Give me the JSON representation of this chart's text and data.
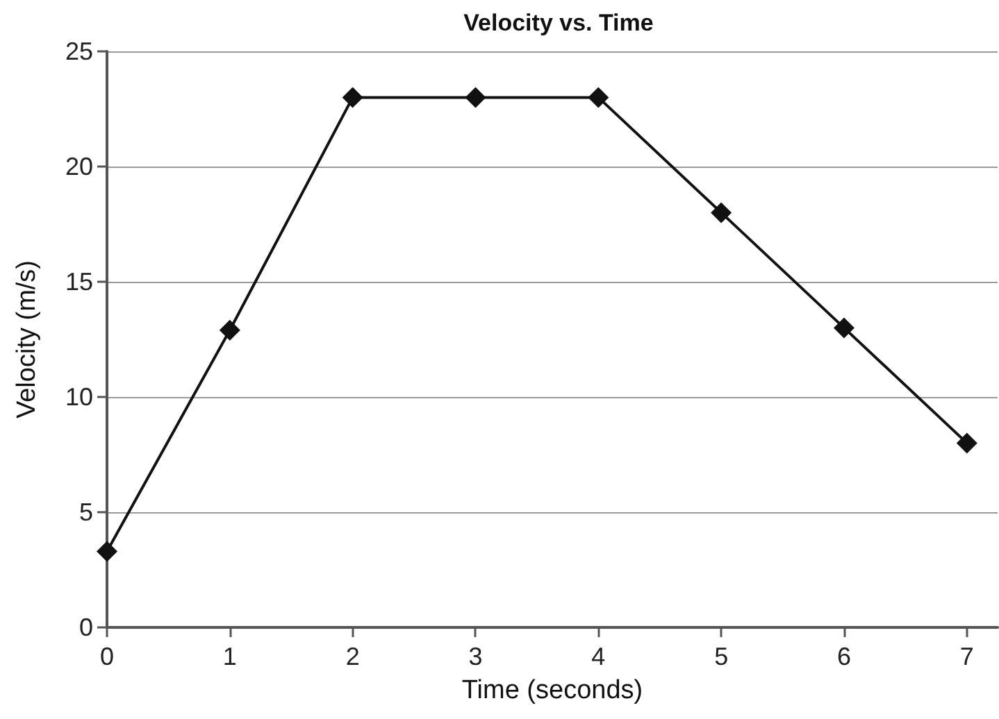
{
  "chart_data": {
    "type": "line",
    "title": "Velocity vs. Time",
    "xlabel": "Time (seconds)",
    "ylabel": "Velocity (m/s)",
    "x": [
      0,
      1,
      2,
      3,
      4,
      5,
      6,
      7
    ],
    "values": [
      3.3,
      12.9,
      23,
      23,
      23,
      18,
      13,
      8
    ],
    "color": "#111111",
    "xlim": [
      0,
      7.25
    ],
    "xticks": [
      0,
      1,
      2,
      3,
      4,
      5,
      6,
      7
    ],
    "ylim": [
      0,
      25
    ],
    "yticks": [
      0,
      5,
      10,
      15,
      20,
      25
    ],
    "grid": "y",
    "marker": "diamond",
    "line_style": "solid"
  }
}
